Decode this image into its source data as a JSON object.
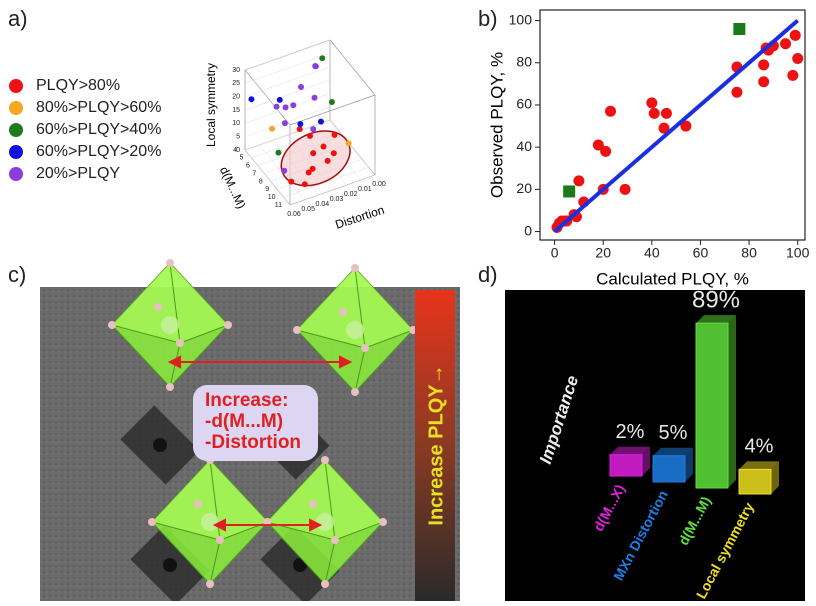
{
  "chart_data": [
    {
      "type": "scatter3d",
      "panel_label": "a)",
      "xlabel": "Distortion",
      "ylabel": "d(M...M)",
      "zlabel": "Local symmetry",
      "xlim": [
        0,
        0.06
      ],
      "ylim": [
        4,
        11
      ],
      "zlim": [
        0,
        30
      ],
      "xticks": [
        {
          "value": 0,
          "label": "0.00"
        },
        {
          "value": 0.01,
          "label": "0.01"
        },
        {
          "value": 0.02,
          "label": "0.02"
        },
        {
          "value": 0.03,
          "label": "0.03"
        },
        {
          "value": 0.04,
          "label": "0.04"
        },
        {
          "value": 0.05,
          "label": "0.05"
        },
        {
          "value": 0.06,
          "label": "0.06"
        }
      ],
      "yticks": [
        4,
        5,
        6,
        7,
        8,
        9,
        10,
        11
      ],
      "zticks": [
        0,
        5,
        10,
        15,
        20,
        25,
        30
      ],
      "series": [
        {
          "name": "PLQY>80%",
          "color": "#ee1111",
          "x": [
            0.03,
            0.035,
            0.025,
            0.04,
            0.02,
            0.03,
            0.045,
            0.015,
            0.035,
            0.05,
            0.028
          ],
          "y": [
            8,
            9,
            8.5,
            9.5,
            9,
            7.5,
            10,
            8,
            7,
            9,
            9.8
          ],
          "z": [
            5,
            3,
            8,
            4,
            6,
            10,
            2,
            9,
            12,
            1,
            7
          ]
        },
        {
          "name": "80%>PLQY>60%",
          "color": "#f5a623",
          "x": [
            0.005,
            0.05
          ],
          "y": [
            8,
            6
          ],
          "z": [
            4,
            12
          ]
        },
        {
          "name": "60%>PLQY>40%",
          "color": "#1f7a1f",
          "x": [
            0.01,
            0.01,
            0.05
          ],
          "y": [
            5,
            6.5,
            7
          ],
          "z": [
            28,
            16,
            6
          ]
        },
        {
          "name": "60%>PLQY>20%",
          "color": "#1010dd",
          "x": [
            0.04,
            0.02,
            0.03,
            0.06
          ],
          "y": [
            5,
            7,
            6,
            5
          ],
          "z": [
            18,
            12,
            10,
            22
          ]
        },
        {
          "name": "20%>PLQY",
          "color": "#8a3de0",
          "x": [
            0.05,
            0.045,
            0.035,
            0.025,
            0.015,
            0.04,
            0.055,
            0.01,
            0.03,
            0.02
          ],
          "y": [
            8,
            7,
            6,
            5,
            5,
            4.5,
            9,
            4,
            8,
            6
          ],
          "z": [
            20,
            22,
            18,
            20,
            26,
            14,
            6,
            22,
            14,
            18
          ]
        }
      ]
    },
    {
      "type": "scatter",
      "panel_label": "b)",
      "xlabel": "Calculated PLQY, %",
      "ylabel": "Observed PLQY, %",
      "xlim": [
        -6,
        103
      ],
      "ylim": [
        -4,
        105
      ],
      "xticks": [
        0,
        20,
        40,
        60,
        80,
        100
      ],
      "yticks": [
        0,
        20,
        40,
        60,
        80,
        100
      ],
      "series": [
        {
          "marker": "circle",
          "color": "#ee1111",
          "x": [
            1,
            2,
            3,
            4,
            5,
            8,
            9,
            10,
            12,
            20,
            18,
            21,
            23,
            29,
            40,
            41,
            45,
            46,
            54,
            75,
            75,
            86,
            86,
            88,
            87,
            90,
            95,
            98,
            99,
            100
          ],
          "y": [
            2,
            4,
            5,
            5,
            5,
            8,
            7,
            24,
            14,
            20,
            41,
            38,
            57,
            20,
            61,
            56,
            49,
            56,
            50,
            78,
            66,
            79,
            71,
            86,
            87,
            88,
            89,
            74,
            93,
            82
          ]
        },
        {
          "marker": "square",
          "color": "#1a7a1a",
          "x": [
            6,
            76
          ],
          "y": [
            19,
            96
          ]
        },
        {
          "marker": "line",
          "color": "#1c2fe0",
          "x": [
            0,
            100
          ],
          "y": [
            0,
            100
          ]
        }
      ]
    },
    {
      "type": "bar3d",
      "panel_label": "d)",
      "ylabel": "Importance",
      "categories": [
        "d(M...X)",
        "MXn Distortion",
        "d(M...M)",
        "Local symmetry"
      ],
      "values": [
        2,
        5,
        89,
        4
      ],
      "value_labels": [
        "2%",
        "5%",
        "89%",
        "4%"
      ],
      "colors": [
        "#e020e0",
        "#1e7fe8",
        "#5ee03a",
        "#f0e020"
      ]
    }
  ],
  "illustration": {
    "panel_label": "c)",
    "box_text": [
      "Increase:",
      "-d(M...M)",
      "-Distortion"
    ],
    "side_label": "Increase PLQY→"
  }
}
